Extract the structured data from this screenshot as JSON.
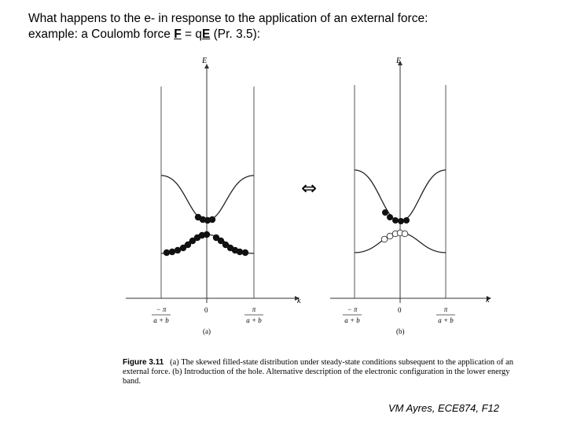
{
  "heading": {
    "line1": "What happens to the e- in response to the application of an external force:",
    "line2_pre": "example: a Coulomb force ",
    "F": "F",
    "eq": " = q",
    "E": "E",
    "line2_post": " (Pr. 3.5):"
  },
  "figure": {
    "axis_E": "E",
    "axis_k": "k",
    "zero": "0",
    "left_num": "− π",
    "left_den": "a + b",
    "right_num": "π",
    "right_den": "a + b",
    "panel_a": "(a)",
    "panel_b": "(b)",
    "equivalence": "⇔"
  },
  "caption": {
    "fig_num": "Figure 3.11",
    "text": "(a) The skewed filled-state distribution under steady-state conditions subsequent to the application of an external force. (b) Introduction of the hole. Alternative description of the electronic configuration in the lower energy band."
  },
  "footer": "VM Ayres, ECE874, F12"
}
